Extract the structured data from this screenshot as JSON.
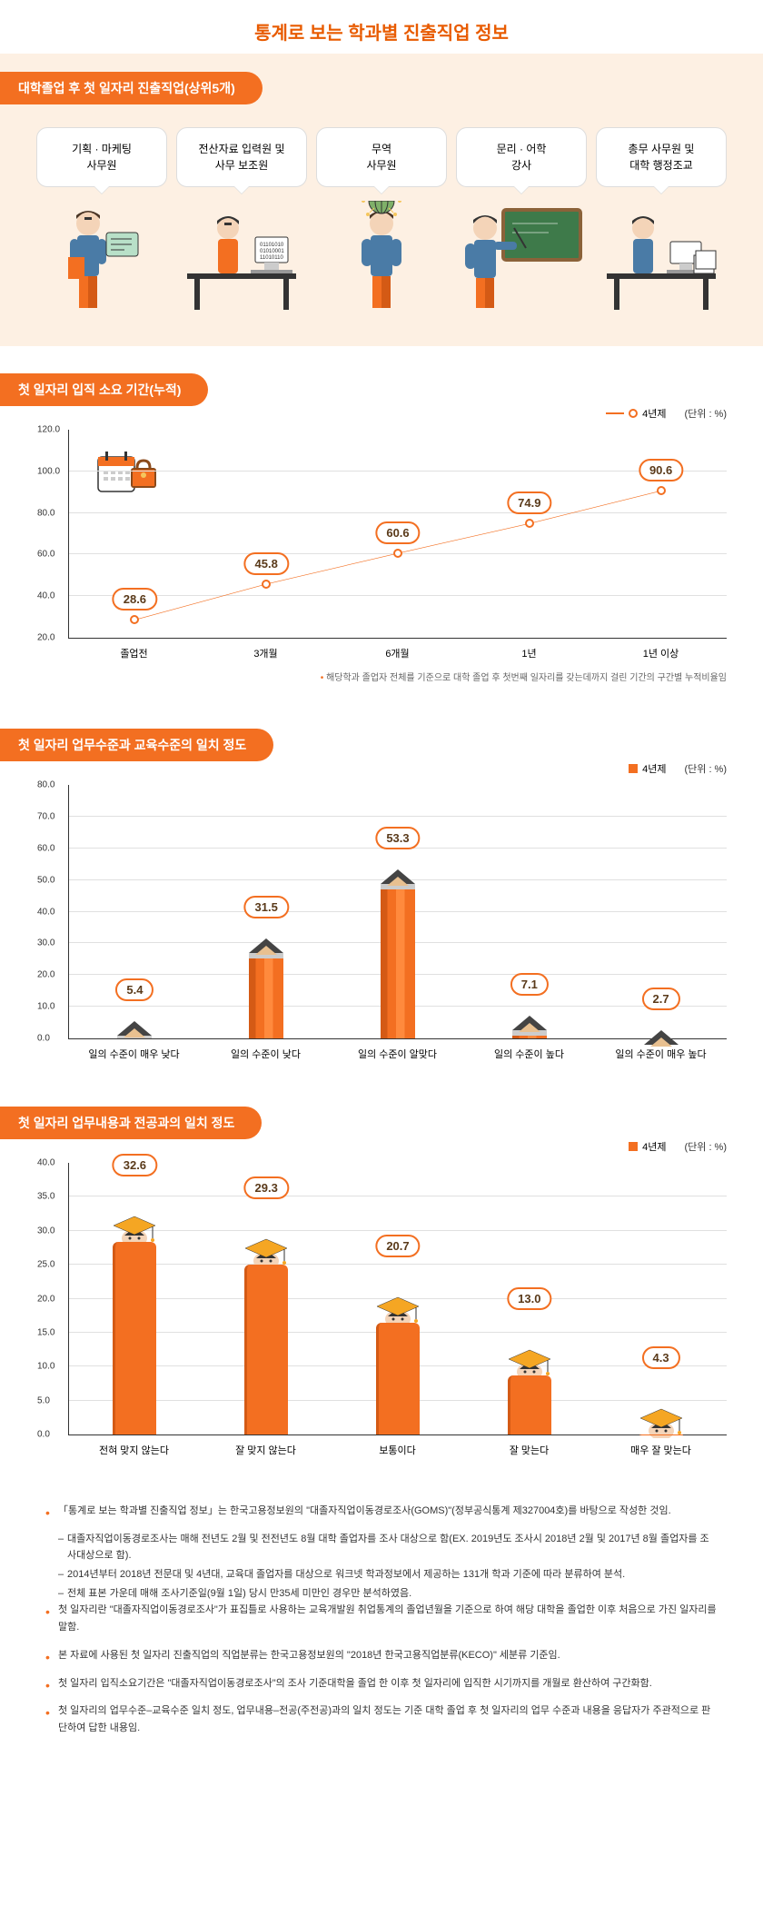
{
  "title": "통계로 보는 학과별 진출직업 정보",
  "top5": {
    "header": "대학졸업 후 첫 일자리 진출직업(상위5개)",
    "items": [
      "기획 · 마케팅\n사무원",
      "전산자료 입력원 및\n사무 보조원",
      "무역\n사무원",
      "문리 · 어학\n강사",
      "총무 사무원 및\n대학 행정조교"
    ]
  },
  "chart1": {
    "header": "첫 일자리 입직 소요 기간(누적)",
    "legend": "4년제",
    "unit": "(단위 : %)",
    "ymin": 20,
    "ymax": 120,
    "ystep": 20,
    "categories": [
      "졸업전",
      "3개월",
      "6개월",
      "1년",
      "1년 이상"
    ],
    "values": [
      28.6,
      45.8,
      60.6,
      74.9,
      90.6
    ],
    "color": "#f36f21",
    "footnote": "해당학과 졸업자 전체를 기준으로 대학 졸업 후 첫번째 일자리를 갖는데까지 걸린 기간의 구간별 누적비율임"
  },
  "chart2": {
    "header": "첫 일자리 업무수준과 교육수준의 일치 정도",
    "legend": "4년제",
    "unit": "(단위 : %)",
    "ymin": 0,
    "ymax": 80,
    "ystep": 10,
    "categories": [
      "일의 수준이 매우 낮다",
      "일의 수준이 낮다",
      "일의 수준이 알맞다",
      "일의 수준이 높다",
      "일의 수준이 매우 높다"
    ],
    "values": [
      5.4,
      31.5,
      53.3,
      7.1,
      2.7
    ],
    "color": "#f36f21"
  },
  "chart3": {
    "header": "첫 일자리 업무내용과 전공과의 일치 정도",
    "legend": "4년제",
    "unit": "(단위 : %)",
    "ymin": 0,
    "ymax": 40,
    "ystep": 5,
    "categories": [
      "전혀 맞지 않는다",
      "잘 맞지 않는다",
      "보통이다",
      "잘 맞는다",
      "매우 잘 맞는다"
    ],
    "values": [
      32.6,
      29.3,
      20.7,
      13.0,
      4.3
    ],
    "color": "#f36f21"
  },
  "notes": [
    {
      "text": "「통계로 보는 학과별 진출직업 정보」는 한국고용정보원의 \"대졸자직업이동경로조사(GOMS)\"(정부공식통계 제327004호)를 바탕으로 작성한 것임.",
      "subs": [
        "대졸자직업이동경로조사는 매해 전년도 2월 및 전전년도 8월 대학 졸업자를 조사 대상으로 함(EX. 2019년도 조사시 2018년 2월 및 2017년 8월 졸업자를 조사대상으로 함).",
        "2014년부터 2018년 전문대 및 4년대, 교육대 졸업자를 대상으로 워크넷 학과정보에서 제공하는 131개 학과 기준에 따라 분류하여 분석.",
        "전체 표본 가운데 매해 조사기준일(9월 1일) 당시 만35세 미만인 경우만 분석하였음."
      ]
    },
    {
      "text": "첫 일자리란 \"대졸자직업이동경로조사\"가 표집틀로 사용하는 교육개발원 취업통계의 졸업년월을 기준으로 하여 해당 대학을 졸업한 이후 처음으로 가진 일자리를 말함."
    },
    {
      "text": "본 자료에 사용된 첫 일자리 진출직업의 직업분류는 한국고용정보원의 \"2018년 한국고용직업분류(KECO)\" 세분류 기준임."
    },
    {
      "text": "첫 일자리 입직소요기간은 \"대졸자직업이동경로조사\"의 조사 기준대학을 졸업 한 이후 첫 일자리에 입직한 시기까지를 개월로 환산하여 구간화함."
    },
    {
      "text": "첫 일자리의 업무수준–교육수준 일치 정도, 업무내용–전공(주전공)과의 일치 정도는 기준 대학 졸업 후 첫 일자리의 업무 수준과 내용을 응답자가 주관적으로 판단하여 답한 내용임."
    }
  ]
}
